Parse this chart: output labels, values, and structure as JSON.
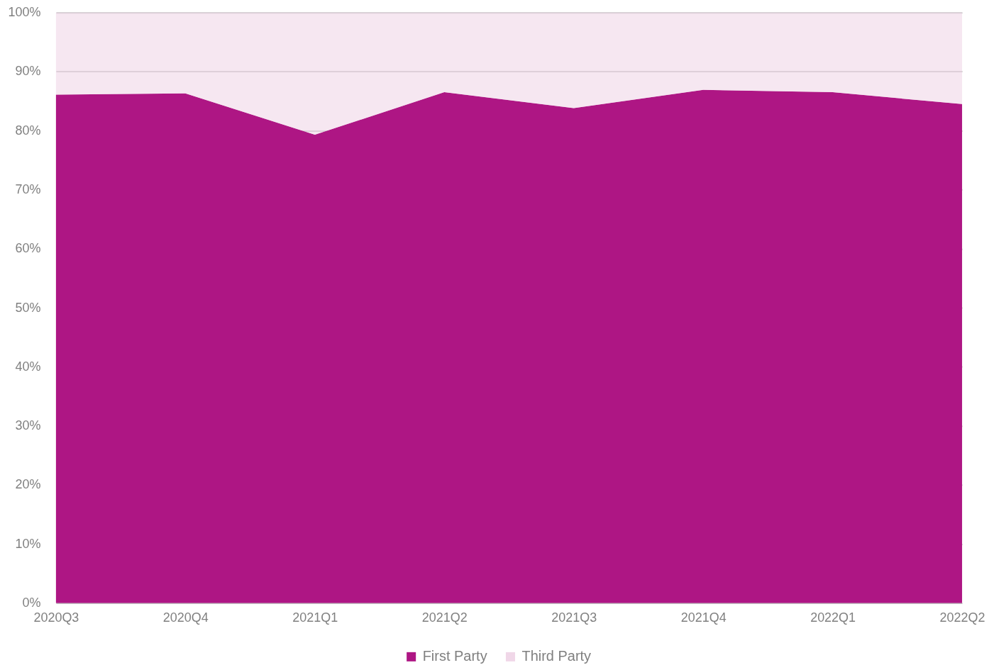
{
  "chart_data": {
    "type": "area",
    "stacked": true,
    "categories": [
      "2020Q3",
      "2020Q4",
      "2021Q1",
      "2021Q2",
      "2021Q3",
      "2021Q4",
      "2022Q1",
      "2022Q2"
    ],
    "series": [
      {
        "name": "First Party",
        "color": "#ae1684",
        "values": [
          86.1,
          86.3,
          79.3,
          86.5,
          83.8,
          86.9,
          86.5,
          84.5
        ]
      },
      {
        "name": "Third Party",
        "color": "#f6e7f1",
        "values": [
          13.9,
          13.7,
          20.7,
          13.5,
          16.2,
          13.1,
          13.5,
          15.5
        ]
      }
    ],
    "ylim": [
      0,
      100
    ],
    "yticks": [
      {
        "value": 0,
        "label": "0%"
      },
      {
        "value": 10,
        "label": "10%"
      },
      {
        "value": 20,
        "label": "20%"
      },
      {
        "value": 30,
        "label": "30%"
      },
      {
        "value": 40,
        "label": "40%"
      },
      {
        "value": 50,
        "label": "50%"
      },
      {
        "value": 60,
        "label": "60%"
      },
      {
        "value": 70,
        "label": "70%"
      },
      {
        "value": 80,
        "label": "80%"
      },
      {
        "value": 90,
        "label": "90%"
      },
      {
        "value": 100,
        "label": "100%"
      }
    ],
    "grid": "y",
    "legend": "bottom"
  }
}
